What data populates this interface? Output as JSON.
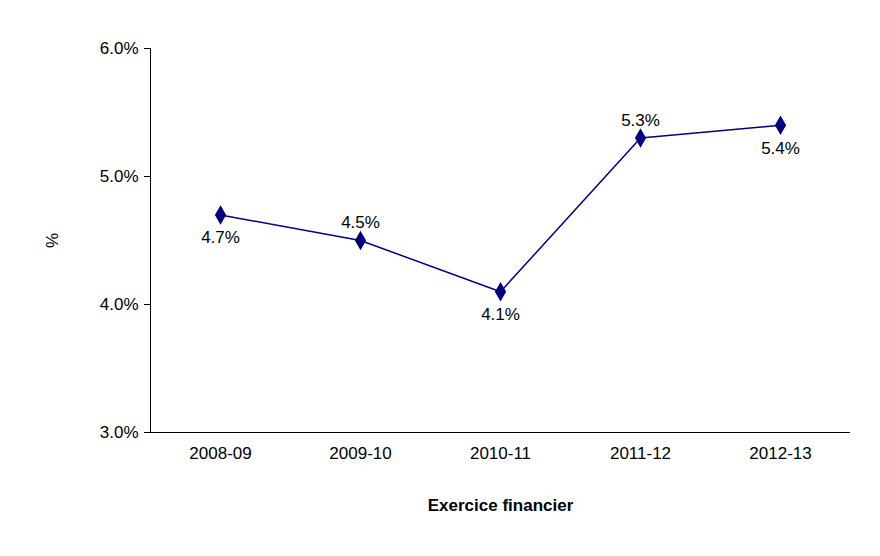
{
  "chart_data": {
    "type": "line",
    "x_label": "Exercice financier",
    "y_label": "%",
    "categories": [
      "2008-09",
      "2009-10",
      "2010-11",
      "2011-12",
      "2012-13"
    ],
    "values": [
      4.7,
      4.5,
      4.1,
      5.3,
      5.4
    ],
    "value_labels": [
      "4.7%",
      "4.5%",
      "4.1%",
      "5.3%",
      "5.4%"
    ],
    "data_labels": true,
    "color": "#000080",
    "marker": "diamond",
    "line_style": "solid",
    "ylim": [
      3,
      6
    ],
    "yticks": [
      {
        "value": 3,
        "label": "3.0%"
      },
      {
        "value": 4,
        "label": "4.0%"
      },
      {
        "value": 5,
        "label": "5.0%"
      },
      {
        "value": 6,
        "label": "6.0%"
      }
    ],
    "grid": false
  }
}
